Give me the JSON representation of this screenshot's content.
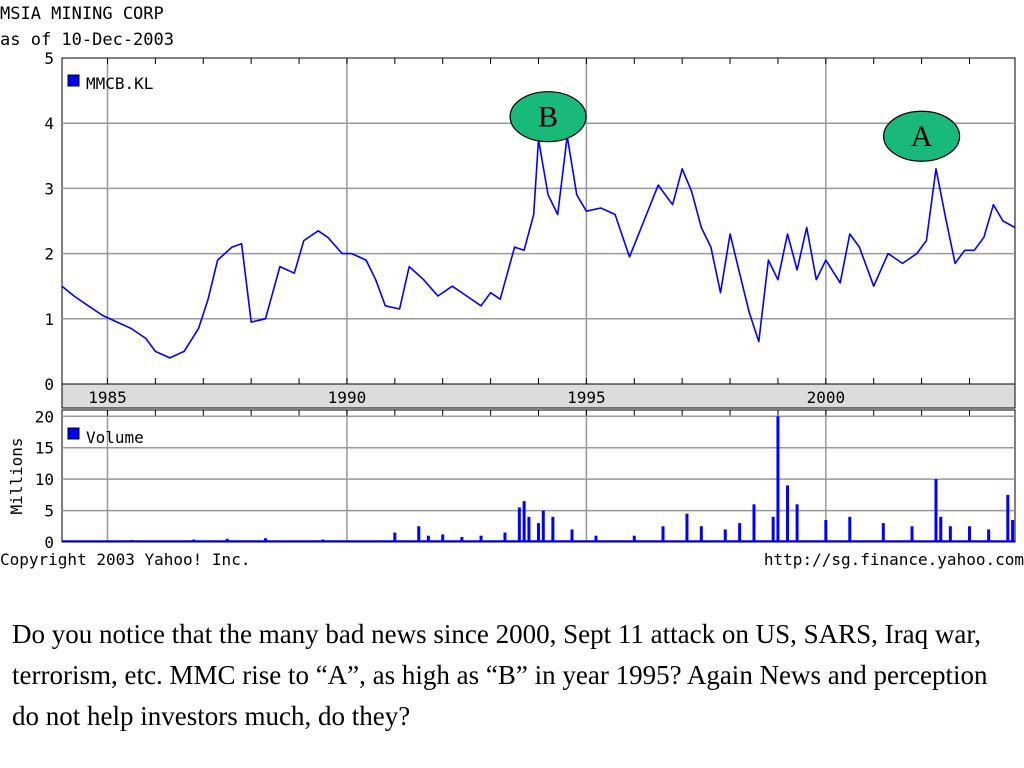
{
  "header": {
    "company": "MSIA MINING CORP",
    "as_of": "as of 10-Dec-2003"
  },
  "chart_data": [
    {
      "type": "line",
      "title": "MSIA MINING CORP",
      "subtitle": "as of 10-Dec-2003",
      "legend": "MMCB.KL",
      "legend_placement": "top-left",
      "grid": true,
      "xlim": [
        1984.05,
        2003.95
      ],
      "ylim": [
        0,
        5
      ],
      "y_ticks": [
        "0",
        "1",
        "2",
        "3",
        "4",
        "5"
      ],
      "x_ticks": [
        "1985",
        "1990",
        "1995",
        "2000"
      ],
      "series": [
        {
          "name": "MMCB.KL",
          "color": "#0000ff",
          "x": [
            1984.05,
            1984.3,
            1984.6,
            1984.9,
            1985.2,
            1985.5,
            1985.8,
            1986.0,
            1986.3,
            1986.6,
            1986.9,
            1987.1,
            1987.3,
            1987.6,
            1987.8,
            1988.0,
            1988.3,
            1988.6,
            1988.9,
            1989.1,
            1989.4,
            1989.6,
            1989.9,
            1990.1,
            1990.4,
            1990.6,
            1990.8,
            1991.1,
            1991.3,
            1991.6,
            1991.9,
            1992.2,
            1992.5,
            1992.8,
            1993.0,
            1993.2,
            1993.5,
            1993.7,
            1993.9,
            1994.0,
            1994.2,
            1994.4,
            1994.6,
            1994.8,
            1995.0,
            1995.3,
            1995.6,
            1995.9,
            1996.2,
            1996.5,
            1996.8,
            1997.0,
            1997.2,
            1997.4,
            1997.6,
            1997.8,
            1998.0,
            1998.2,
            1998.4,
            1998.6,
            1998.8,
            1999.0,
            1999.2,
            1999.4,
            1999.6,
            1999.8,
            2000.0,
            2000.3,
            2000.5,
            2000.7,
            2001.0,
            2001.3,
            2001.6,
            2001.9,
            2002.1,
            2002.3,
            2002.5,
            2002.7,
            2002.9,
            2003.1,
            2003.3,
            2003.5,
            2003.7,
            2003.95
          ],
          "values": [
            1.5,
            1.35,
            1.2,
            1.05,
            0.95,
            0.85,
            0.7,
            0.5,
            0.4,
            0.5,
            0.85,
            1.3,
            1.9,
            2.1,
            2.15,
            0.95,
            1.0,
            1.8,
            1.7,
            2.2,
            2.35,
            2.25,
            2.0,
            2.0,
            1.9,
            1.6,
            1.2,
            1.15,
            1.8,
            1.6,
            1.35,
            1.5,
            1.35,
            1.2,
            1.4,
            1.3,
            2.1,
            2.05,
            2.6,
            3.75,
            2.9,
            2.6,
            3.8,
            2.9,
            2.65,
            2.7,
            2.6,
            1.95,
            2.5,
            3.05,
            2.75,
            3.3,
            2.95,
            2.4,
            2.1,
            1.4,
            2.3,
            1.7,
            1.1,
            0.65,
            1.9,
            1.6,
            2.3,
            1.75,
            2.4,
            1.6,
            1.9,
            1.55,
            2.3,
            2.1,
            1.5,
            2.0,
            1.85,
            2.0,
            2.2,
            3.3,
            2.55,
            1.85,
            2.05,
            2.05,
            2.25,
            2.75,
            2.5,
            2.4
          ]
        }
      ],
      "annotations": [
        {
          "label": "B",
          "x": 1994.2,
          "y": 4.1
        },
        {
          "label": "A",
          "x": 2002.0,
          "y": 3.8
        }
      ]
    },
    {
      "type": "bar",
      "legend": "Volume",
      "ylabel": "Millions",
      "xlim": [
        1984.05,
        2003.95
      ],
      "ylim": [
        0,
        21
      ],
      "y_ticks": [
        "0",
        "5",
        "10",
        "15",
        "20"
      ],
      "grid": true,
      "series": [
        {
          "name": "Volume",
          "color": "#0000ff",
          "x": [
            1985.5,
            1986.8,
            1987.5,
            1988.3,
            1989.5,
            1991.0,
            1991.5,
            1991.7,
            1992.0,
            1992.4,
            1992.8,
            1993.3,
            1993.6,
            1993.7,
            1993.8,
            1994.0,
            1994.1,
            1994.3,
            1994.7,
            1995.2,
            1996.0,
            1996.6,
            1997.1,
            1997.4,
            1997.9,
            1998.2,
            1998.5,
            1998.9,
            1999.0,
            1999.2,
            1999.4,
            2000.0,
            2000.5,
            2001.2,
            2001.8,
            2002.3,
            2002.4,
            2002.6,
            2003.0,
            2003.4,
            2003.8,
            2003.9
          ],
          "values": [
            0.3,
            0.4,
            0.5,
            0.6,
            0.4,
            1.5,
            2.5,
            1.0,
            1.2,
            0.8,
            1.0,
            1.5,
            5.5,
            6.5,
            4.0,
            3.0,
            5.0,
            4.0,
            2.0,
            1.0,
            1.0,
            2.5,
            4.5,
            2.5,
            2.0,
            3.0,
            6.0,
            4.0,
            20.0,
            9.0,
            6.0,
            3.5,
            4.0,
            3.0,
            2.5,
            10.0,
            4.0,
            2.5,
            2.5,
            2.0,
            7.5,
            3.5
          ]
        }
      ]
    }
  ],
  "footer": {
    "copyright": "Copyright 2003 Yahoo! Inc.",
    "url": "http://sg.finance.yahoo.com"
  },
  "caption": "Do you notice that the many bad news since 2000, Sept 11 attack on US, SARS, Iraq war, terrorism, etc. MMC rise to “A”, as high as “B” in year 1995? Again News and perception do not help investors much, do they?"
}
